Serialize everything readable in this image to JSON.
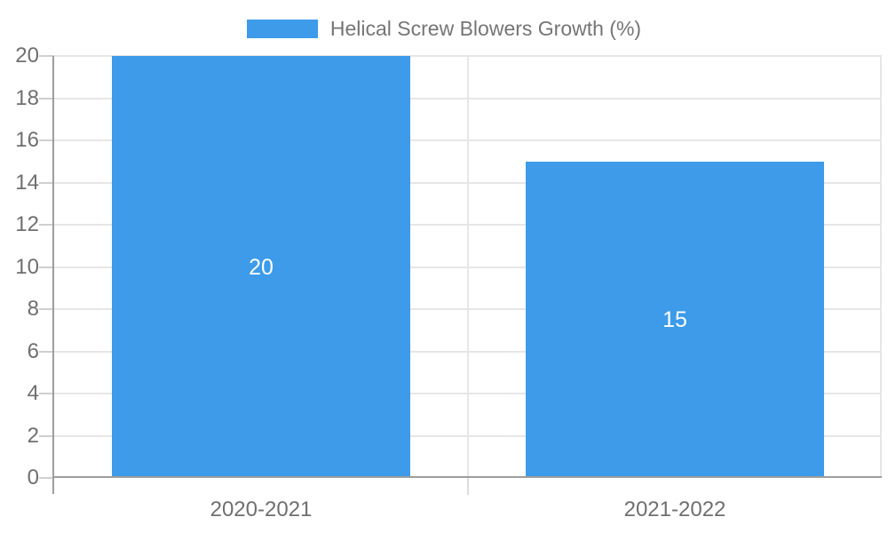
{
  "chart_data": {
    "type": "bar",
    "title": "",
    "legend": {
      "label": "Helical Screw Blowers Growth (%)",
      "position": "top"
    },
    "categories": [
      "2020-2021",
      "2021-2022"
    ],
    "series": [
      {
        "name": "Helical Screw Blowers Growth (%)",
        "values": [
          20,
          15
        ]
      }
    ],
    "data_labels": [
      "20",
      "15"
    ],
    "xlabel": "",
    "ylabel": "",
    "ylim": [
      0,
      20
    ],
    "yticks": [
      0,
      2,
      4,
      6,
      8,
      10,
      12,
      14,
      16,
      18,
      20
    ],
    "grid": "horizontal-gridlines-and-category-boundary-verticals",
    "colors": {
      "bar": "#3D9BE9",
      "bar_value_label": "#FFFFFF",
      "gridline": "#E6E6E6",
      "axis_line": "#9E9E9E",
      "tick_stub": "#CFCFCF",
      "tick_label_text": "#6F6F6F",
      "legend_text": "#757575",
      "background": "#FFFFFF"
    }
  }
}
